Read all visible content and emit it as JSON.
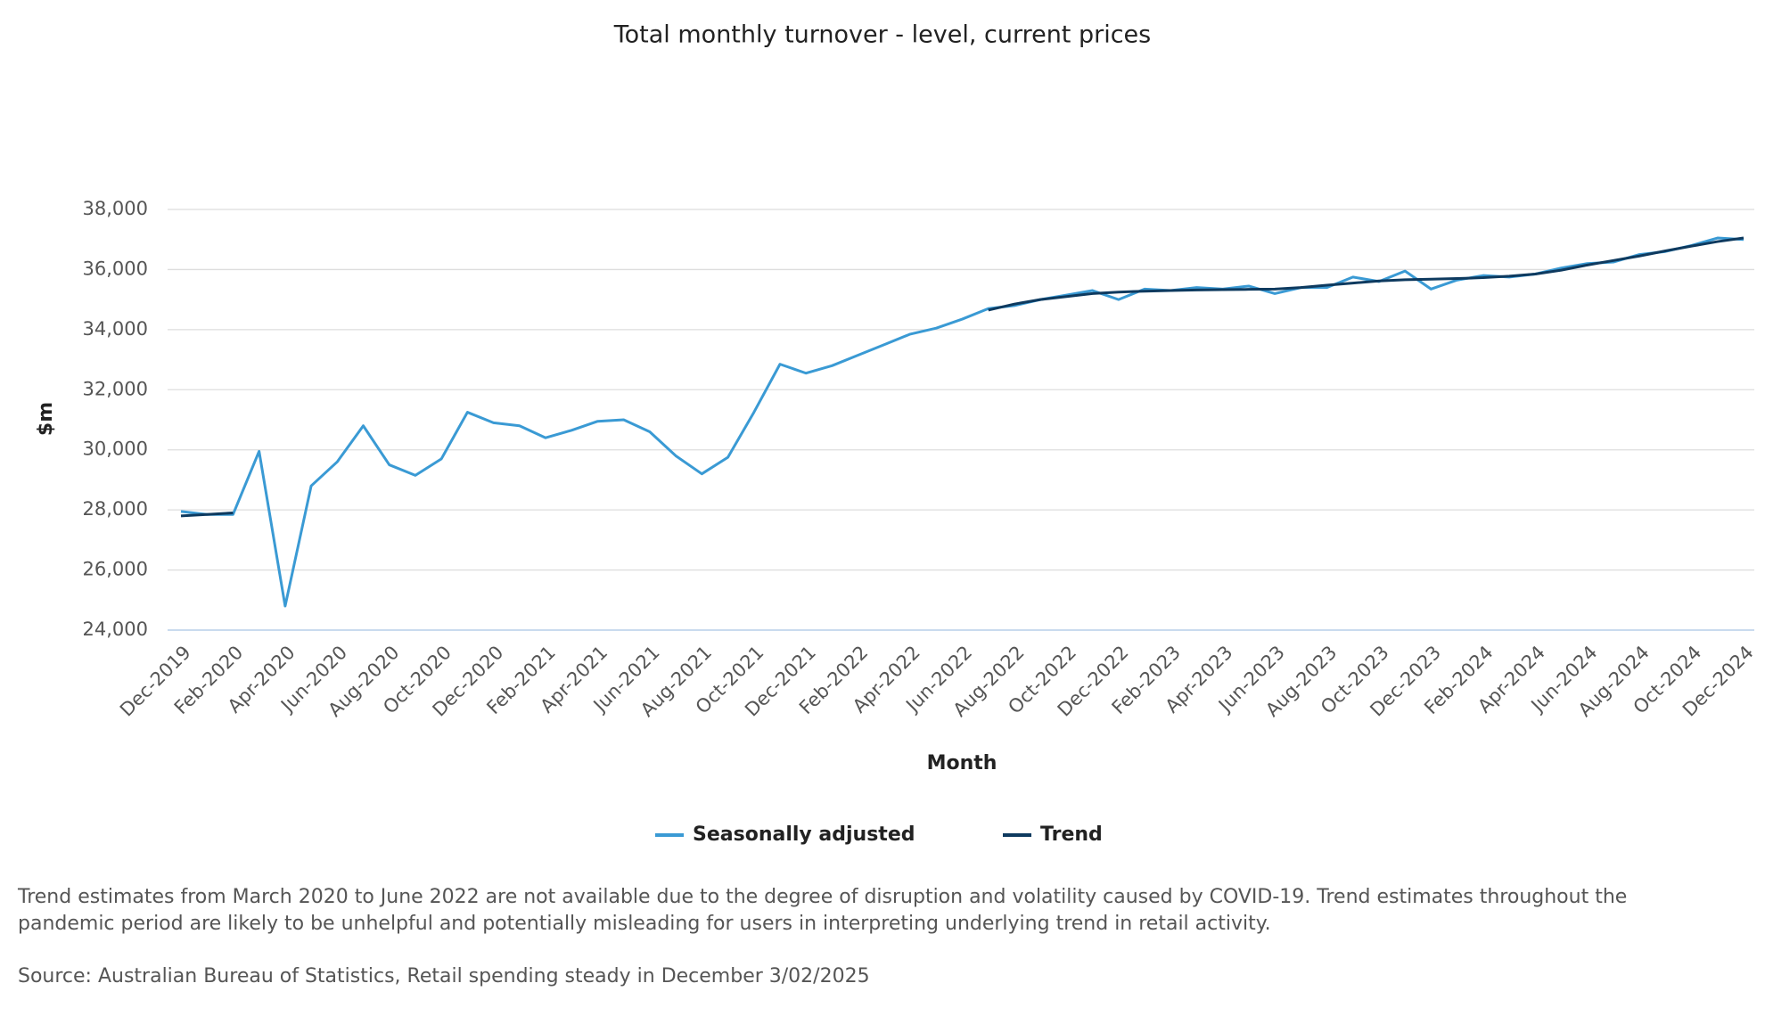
{
  "chart_data": {
    "type": "line",
    "title": "Total monthly turnover - level, current prices",
    "x_label": "Month",
    "y_label": "$m",
    "categories": [
      "Dec-2019",
      null,
      "Feb-2020",
      null,
      "Apr-2020",
      null,
      "Jun-2020",
      null,
      "Aug-2020",
      null,
      "Oct-2020",
      null,
      "Dec-2020",
      null,
      "Feb-2021",
      null,
      "Apr-2021",
      null,
      "Jun-2021",
      null,
      "Aug-2021",
      null,
      "Oct-2021",
      null,
      "Dec-2021",
      null,
      "Feb-2022",
      null,
      "Apr-2022",
      null,
      "Jun-2022",
      null,
      "Aug-2022",
      null,
      "Oct-2022",
      null,
      "Dec-2022",
      null,
      "Feb-2023",
      null,
      "Apr-2023",
      null,
      "Jun-2023",
      null,
      "Aug-2023",
      null,
      "Oct-2023",
      null,
      "Dec-2023",
      null,
      "Feb-2024",
      null,
      "Apr-2024",
      null,
      "Jun-2024",
      null,
      "Aug-2024",
      null,
      "Oct-2024",
      null,
      "Dec-2024"
    ],
    "series": [
      {
        "name": "Seasonally adjusted",
        "color": "#3a9ad4",
        "values": [
          27950,
          27850,
          27850,
          29950,
          24800,
          28800,
          29600,
          30800,
          29500,
          29150,
          29700,
          31250,
          30900,
          30800,
          30400,
          30650,
          30950,
          31000,
          30600,
          29800,
          29200,
          29750,
          31250,
          32850,
          32550,
          32800,
          33150,
          33500,
          33850,
          34050,
          34350,
          34700,
          34800,
          35000,
          35150,
          35300,
          35000,
          35350,
          35300,
          35400,
          35350,
          35450,
          35200,
          35400,
          35400,
          35750,
          35600,
          35950,
          35350,
          35650,
          35800,
          35750,
          35850,
          36050,
          36200,
          36250,
          36500,
          36600,
          36800,
          37050,
          37000
        ]
      },
      {
        "name": "Trend",
        "color": "#0e3a5f",
        "values": [
          27800,
          27850,
          27900,
          null,
          null,
          null,
          null,
          null,
          null,
          null,
          null,
          null,
          null,
          null,
          null,
          null,
          null,
          null,
          null,
          null,
          null,
          null,
          null,
          null,
          null,
          null,
          null,
          null,
          null,
          null,
          null,
          34650,
          34850,
          35000,
          35100,
          35200,
          35250,
          35280,
          35300,
          35320,
          35330,
          35340,
          35350,
          35400,
          35480,
          35550,
          35620,
          35660,
          35680,
          35700,
          35730,
          35780,
          35850,
          35980,
          36150,
          36300,
          36450,
          36620,
          36780,
          36930,
          37050
        ]
      }
    ],
    "ylim": [
      24000,
      38000
    ],
    "yticks": [
      {
        "value": 24000,
        "label": "24,000"
      },
      {
        "value": 26000,
        "label": "26,000"
      },
      {
        "value": 28000,
        "label": "28,000"
      },
      {
        "value": 30000,
        "label": "30,000"
      },
      {
        "value": 32000,
        "label": "32,000"
      },
      {
        "value": 34000,
        "label": "34,000"
      },
      {
        "value": 36000,
        "label": "36,000"
      },
      {
        "value": 38000,
        "label": "38,000"
      }
    ],
    "grid": true,
    "legend": "bottom",
    "notes": [
      "Trend estimates from March 2020 to June 2022 are not available due to the degree of disruption and volatility caused by COVID-19. Trend estimates throughout the",
      "pandemic period are likely to be unhelpful and potentially misleading for users in interpreting underlying trend in retail activity."
    ],
    "source": "Source: Australian Bureau of Statistics, Retail spending steady in December 3/02/2025"
  }
}
